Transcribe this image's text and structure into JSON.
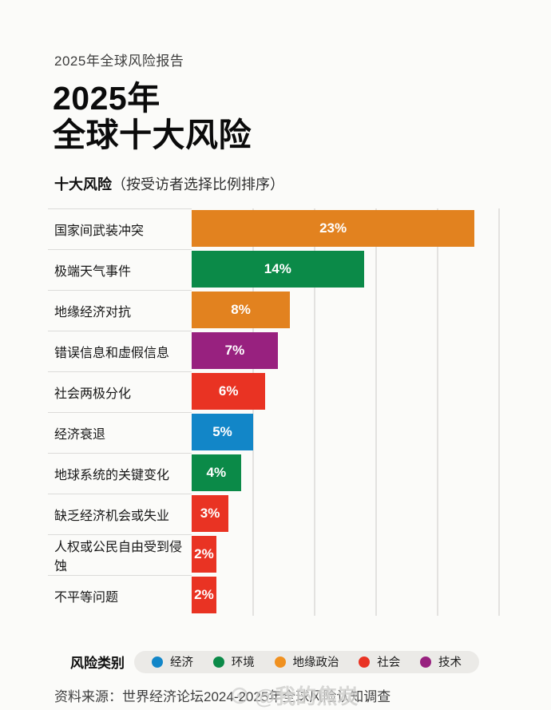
{
  "page": {
    "eyebrow": "2025年全球风险报告",
    "title_line1": "2025年",
    "title_line2": "全球十大风险",
    "subtitle_bold": "十大风险",
    "subtitle_rest": "（按受访者选择比例排序）",
    "source": "资料来源：世界经济论坛2024-2025年全球风险认知调查",
    "watermark": "@我的焦炭"
  },
  "legend": {
    "title": "风险类别",
    "items": [
      {
        "label": "经济",
        "color": "#1286C8"
      },
      {
        "label": "环境",
        "color": "#0B8A48"
      },
      {
        "label": "地缘政治",
        "color": "#F09120"
      },
      {
        "label": "社会",
        "color": "#E93323"
      },
      {
        "label": "技术",
        "color": "#98217F"
      }
    ]
  },
  "chart_data": {
    "type": "bar",
    "orientation": "horizontal",
    "title": "十大风险（按受访者选择比例排序）",
    "categories": [
      "国家间武装冲突",
      "极端天气事件",
      "地缘经济对抗",
      "错误信息和虚假信息",
      "社会两极分化",
      "经济衰退",
      "地球系统的关键变化",
      "缺乏经济机会或失业",
      "人权或公民自由受到侵蚀",
      "不平等问题"
    ],
    "values": [
      23,
      14,
      8,
      7,
      6,
      5,
      4,
      3,
      2,
      2
    ],
    "value_labels": [
      "23%",
      "14%",
      "8%",
      "7%",
      "6%",
      "5%",
      "4%",
      "3%",
      "2%",
      "2%"
    ],
    "bar_categories": [
      "地缘政治",
      "环境",
      "地缘政治",
      "技术",
      "社会",
      "经济",
      "环境",
      "社会",
      "社会",
      "社会"
    ],
    "bar_colors": [
      "#E2821F",
      "#0B8A48",
      "#E2821F",
      "#98217F",
      "#E93323",
      "#1286C8",
      "#0B8A48",
      "#E93323",
      "#E93323",
      "#E93323"
    ],
    "xlim": [
      0,
      25
    ],
    "gridline_step_pct": 5,
    "grid": true,
    "legend_position": "bottom",
    "value_label_color": "#FFFFFF"
  }
}
